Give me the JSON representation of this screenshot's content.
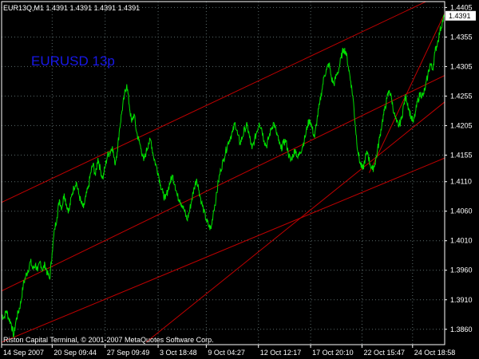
{
  "window": {
    "header": "EUR13Q,M1  1.4391 1.4391 1.4391 1.4391",
    "symbol_label": "EURUSD 13p",
    "footer": "Riston Capital Terminal, © 2001-2007 MetaQuotes Software Corp."
  },
  "colors": {
    "background": "#000000",
    "price_line": "#00e000",
    "channel_line": "#c00000",
    "grid": "#5a6a6a",
    "axis_text": "#ffffff",
    "current_price_box": "#ffffff",
    "symbol_label": "#1818e8"
  },
  "chart_data": {
    "type": "line",
    "title": "",
    "xlabel": "",
    "ylabel": "",
    "ylim": [
      1.3834,
      1.4415
    ],
    "y_ticks": [
      "1.4405",
      "1.4355",
      "1.4305",
      "1.4255",
      "1.4205",
      "1.4155",
      "1.4110",
      "1.4060",
      "1.4010",
      "1.3960",
      "1.3910",
      "1.3860"
    ],
    "x_ticks": [
      "14 Sep 2007",
      "20 Sep 09:44",
      "27 Sep 09:49",
      "3 Oct 18:48",
      "9 Oct 04:27",
      "12 Oct 12:17",
      "17 Oct 20:10",
      "22 Oct 15:47",
      "24 Oct 18:58"
    ],
    "x_tick_index": [
      0,
      63,
      129,
      195,
      255,
      320,
      385,
      449,
      512
    ],
    "current_price": "1.4391",
    "grid": true,
    "series": [
      {
        "points": [
          [
            0,
            1.3885
          ],
          [
            3,
            1.388
          ],
          [
            6,
            1.3892
          ],
          [
            9,
            1.3878
          ],
          [
            12,
            1.387
          ],
          [
            15,
            1.3848
          ],
          [
            18,
            1.3875
          ],
          [
            21,
            1.389
          ],
          [
            24,
            1.3905
          ],
          [
            27,
            1.3935
          ],
          [
            30,
            1.395
          ],
          [
            33,
            1.396
          ],
          [
            36,
            1.3975
          ],
          [
            39,
            1.3962
          ],
          [
            42,
            1.397
          ],
          [
            45,
            1.3958
          ],
          [
            48,
            1.3975
          ],
          [
            51,
            1.396
          ],
          [
            54,
            1.397
          ],
          [
            57,
            1.3955
          ],
          [
            60,
            1.3945
          ],
          [
            63,
            1.399
          ],
          [
            66,
            1.403
          ],
          [
            69,
            1.405
          ],
          [
            72,
            1.408
          ],
          [
            75,
            1.4065
          ],
          [
            78,
            1.409
          ],
          [
            81,
            1.407
          ],
          [
            84,
            1.406
          ],
          [
            87,
            1.4085
          ],
          [
            90,
            1.41
          ],
          [
            93,
            1.411
          ],
          [
            96,
            1.409
          ],
          [
            99,
            1.4075
          ],
          [
            102,
            1.4065
          ],
          [
            105,
            1.4085
          ],
          [
            108,
            1.41
          ],
          [
            111,
            1.4125
          ],
          [
            114,
            1.414
          ],
          [
            117,
            1.412
          ],
          [
            120,
            1.415
          ],
          [
            123,
            1.413
          ],
          [
            126,
            1.4115
          ],
          [
            129,
            1.4135
          ],
          [
            132,
            1.4155
          ],
          [
            135,
            1.416
          ],
          [
            138,
            1.417
          ],
          [
            141,
            1.414
          ],
          [
            144,
            1.416
          ],
          [
            147,
            1.42
          ],
          [
            150,
            1.423
          ],
          [
            153,
            1.4255
          ],
          [
            156,
            1.4275
          ],
          [
            159,
            1.424
          ],
          [
            162,
            1.421
          ],
          [
            165,
            1.4225
          ],
          [
            168,
            1.4195
          ],
          [
            171,
            1.418
          ],
          [
            174,
            1.4165
          ],
          [
            177,
            1.4145
          ],
          [
            180,
            1.416
          ],
          [
            183,
            1.4175
          ],
          [
            186,
            1.418
          ],
          [
            189,
            1.4155
          ],
          [
            192,
            1.414
          ],
          [
            195,
            1.4125
          ],
          [
            198,
            1.4105
          ],
          [
            201,
            1.409
          ],
          [
            204,
            1.408
          ],
          [
            207,
            1.4095
          ],
          [
            210,
            1.411
          ],
          [
            213,
            1.412
          ],
          [
            216,
            1.4105
          ],
          [
            219,
            1.4085
          ],
          [
            222,
            1.408
          ],
          [
            225,
            1.407
          ],
          [
            228,
            1.406
          ],
          [
            231,
            1.4045
          ],
          [
            234,
            1.406
          ],
          [
            237,
            1.408
          ],
          [
            240,
            1.41
          ],
          [
            243,
            1.4115
          ],
          [
            246,
            1.4095
          ],
          [
            249,
            1.4075
          ],
          [
            252,
            1.406
          ],
          [
            255,
            1.4045
          ],
          [
            258,
            1.4035
          ],
          [
            261,
            1.403
          ],
          [
            264,
            1.406
          ],
          [
            267,
            1.408
          ],
          [
            270,
            1.411
          ],
          [
            273,
            1.413
          ],
          [
            276,
            1.4145
          ],
          [
            279,
            1.416
          ],
          [
            282,
            1.4175
          ],
          [
            285,
            1.4185
          ],
          [
            288,
            1.4195
          ],
          [
            291,
            1.421
          ],
          [
            294,
            1.419
          ],
          [
            297,
            1.4175
          ],
          [
            300,
            1.4185
          ],
          [
            303,
            1.42
          ],
          [
            306,
            1.4205
          ],
          [
            309,
            1.4185
          ],
          [
            312,
            1.4165
          ],
          [
            315,
            1.418
          ],
          [
            318,
            1.4195
          ],
          [
            321,
            1.421
          ],
          [
            324,
            1.42
          ],
          [
            327,
            1.418
          ],
          [
            330,
            1.417
          ],
          [
            333,
            1.4185
          ],
          [
            336,
            1.42
          ],
          [
            339,
            1.421
          ],
          [
            342,
            1.4195
          ],
          [
            345,
            1.418
          ],
          [
            348,
            1.4165
          ],
          [
            351,
            1.4175
          ],
          [
            354,
            1.418
          ],
          [
            357,
            1.416
          ],
          [
            360,
            1.4145
          ],
          [
            363,
            1.4155
          ],
          [
            366,
            1.4165
          ],
          [
            369,
            1.415
          ],
          [
            372,
            1.416
          ],
          [
            375,
            1.417
          ],
          [
            378,
            1.4185
          ],
          [
            381,
            1.4205
          ],
          [
            384,
            1.4215
          ],
          [
            387,
            1.42
          ],
          [
            390,
            1.4185
          ],
          [
            393,
            1.4215
          ],
          [
            396,
            1.424
          ],
          [
            399,
            1.4265
          ],
          [
            402,
            1.429
          ],
          [
            405,
            1.43
          ],
          [
            408,
            1.431
          ],
          [
            411,
            1.4285
          ],
          [
            414,
            1.4275
          ],
          [
            417,
            1.429
          ],
          [
            420,
            1.43
          ],
          [
            423,
            1.432
          ],
          [
            426,
            1.4335
          ],
          [
            429,
            1.433
          ],
          [
            432,
            1.4305
          ],
          [
            435,
            1.428
          ],
          [
            438,
            1.425
          ],
          [
            441,
            1.42
          ],
          [
            444,
            1.416
          ],
          [
            447,
            1.414
          ],
          [
            450,
            1.413
          ],
          [
            453,
            1.415
          ],
          [
            456,
            1.416
          ],
          [
            459,
            1.414
          ],
          [
            462,
            1.413
          ],
          [
            465,
            1.414
          ],
          [
            468,
            1.416
          ],
          [
            471,
            1.4185
          ],
          [
            474,
            1.421
          ],
          [
            477,
            1.423
          ],
          [
            480,
            1.425
          ],
          [
            483,
            1.4265
          ],
          [
            486,
            1.425
          ],
          [
            489,
            1.4225
          ],
          [
            492,
            1.421
          ],
          [
            495,
            1.4205
          ],
          [
            498,
            1.4215
          ],
          [
            501,
            1.424
          ],
          [
            504,
            1.4255
          ],
          [
            507,
            1.4235
          ],
          [
            510,
            1.422
          ],
          [
            513,
            1.421
          ],
          [
            516,
            1.423
          ],
          [
            519,
            1.425
          ],
          [
            522,
            1.426
          ],
          [
            525,
            1.4255
          ],
          [
            528,
            1.427
          ],
          [
            531,
            1.429
          ],
          [
            534,
            1.431
          ],
          [
            537,
            1.43
          ],
          [
            540,
            1.433
          ],
          [
            543,
            1.4345
          ],
          [
            546,
            1.4365
          ],
          [
            549,
            1.438
          ],
          [
            552,
            1.4391
          ]
        ]
      }
    ],
    "channel_lines": [
      {
        "from": [
          0,
          1.4075
        ],
        "to": [
          552,
          1.443
        ]
      },
      {
        "from": [
          0,
          1.3925
        ],
        "to": [
          552,
          1.429
        ]
      },
      {
        "from": [
          0,
          1.3838
        ],
        "to": [
          552,
          1.415
        ]
      },
      {
        "from": [
          180,
          1.3838
        ],
        "to": [
          552,
          1.4245
        ]
      },
      {
        "from": [
          458,
          1.4125
        ],
        "to": [
          552,
          1.4395
        ]
      }
    ]
  }
}
